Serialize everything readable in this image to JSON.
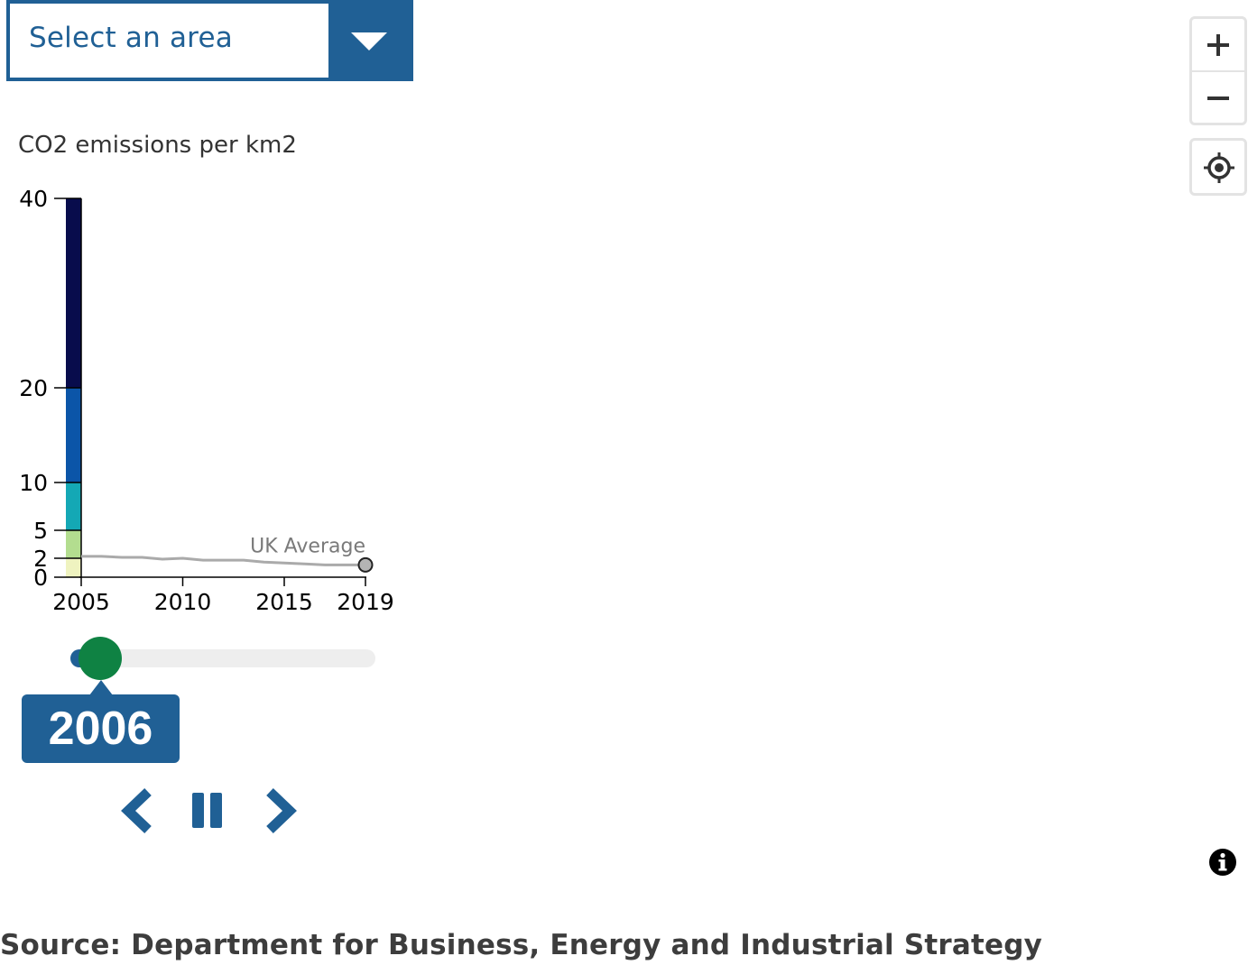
{
  "area_select": {
    "label": "Select an area"
  },
  "legend": {
    "title": "CO2 emissions per km2",
    "colors": [
      "#eff3c0",
      "#b3dd8f",
      "#14a8b5",
      "#0b55a8",
      "#080c4c"
    ],
    "breaks": [
      0,
      2,
      5,
      10,
      20,
      40
    ]
  },
  "chart_data": {
    "type": "line",
    "ylabel": "CO2 emissions per km2",
    "ylim": [
      0,
      40
    ],
    "yticks": [
      "0",
      "2",
      "5",
      "10",
      "20",
      "40"
    ],
    "xticks": [
      "2005",
      "2010",
      "2015",
      "2019"
    ],
    "xlim": [
      2005,
      2019
    ],
    "series": [
      {
        "name": "UK Average",
        "color": "#aaaaaa",
        "x": [
          2005,
          2006,
          2007,
          2008,
          2009,
          2010,
          2011,
          2012,
          2013,
          2014,
          2015,
          2016,
          2017,
          2018,
          2019
        ],
        "values": [
          2.2,
          2.2,
          2.1,
          2.1,
          1.9,
          2.0,
          1.8,
          1.8,
          1.8,
          1.6,
          1.5,
          1.4,
          1.3,
          1.3,
          1.3
        ]
      }
    ]
  },
  "slider": {
    "min": 2005,
    "max": 2019,
    "value": 2006,
    "value_label": "2006"
  },
  "controls": {
    "prev_icon": "chevron-left-icon",
    "pause_icon": "pause-icon",
    "next_icon": "chevron-right-icon"
  },
  "map_controls": {
    "zoom_in_icon": "plus-icon",
    "zoom_out_icon": "minus-icon",
    "locate_icon": "crosshair-icon",
    "info_icon": "info-icon"
  },
  "source": "Source: Department for Business, Energy and Industrial Strategy"
}
